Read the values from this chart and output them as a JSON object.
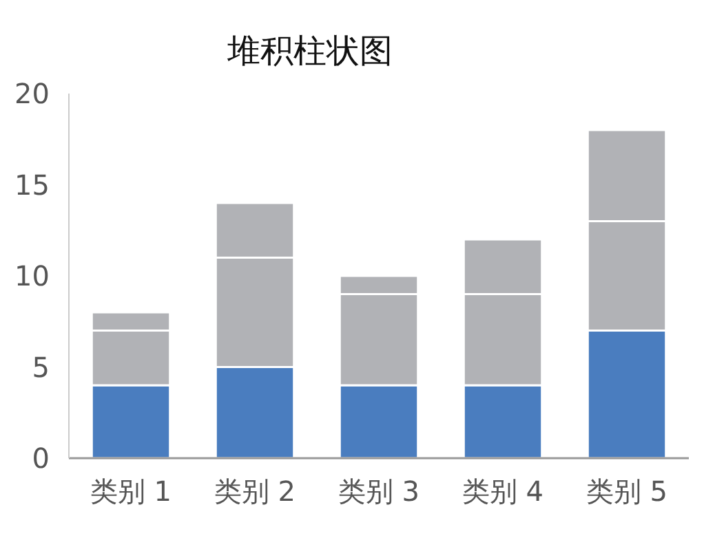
{
  "chart_data": {
    "type": "bar",
    "title": "堆积柱状图",
    "stacked": true,
    "categories": [
      "类别 1",
      "类别 2",
      "类别 3",
      "类别 4",
      "类别 5"
    ],
    "series": [
      {
        "color": "#4a7dbf",
        "values": [
          4,
          5,
          4,
          4,
          7
        ]
      },
      {
        "color": "#b1b2b6",
        "values": [
          3,
          6,
          5,
          5,
          6
        ]
      },
      {
        "color": "#b1b2b6",
        "values": [
          1,
          3,
          1,
          3,
          5
        ]
      }
    ],
    "ylim": [
      0,
      20
    ],
    "yticks": [
      0,
      5,
      10,
      15,
      20
    ]
  }
}
